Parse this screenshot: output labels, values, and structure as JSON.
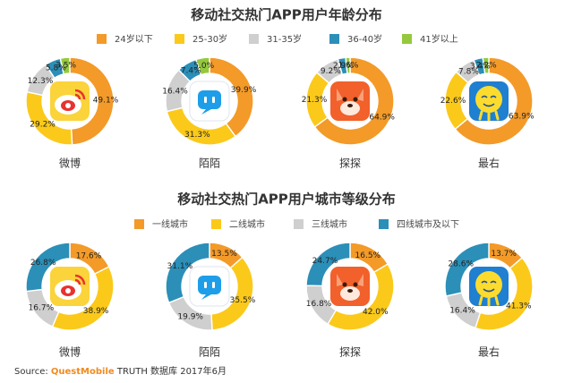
{
  "colors": {
    "s1": "#f39a28",
    "s2": "#fbc91a",
    "s3": "#cfcfcf",
    "s4": "#2b8fb8",
    "s5": "#95c93d",
    "weibo_bg": "#fbd33b",
    "weibo_eye": "#e8322f",
    "momo_bg": "#1e9ee8",
    "tantan_bg": "#f2602b",
    "zuiyou_bg": "#1f7fd0",
    "zuiyou_face": "#fbdc2e"
  },
  "chart_data": [
    {
      "type": "pie",
      "title": "移动社交热门APP用户年龄分布",
      "legend": [
        "24岁以下",
        "25-30岁",
        "31-35岁",
        "36-40岁",
        "41岁以上"
      ],
      "series": [
        {
          "name": "微博",
          "values": [
            49.1,
            29.2,
            12.3,
            5.8,
            3.5
          ],
          "labels": [
            "49.1%",
            "29.2%",
            "12.3%",
            "5.8%",
            "3.5%"
          ]
        },
        {
          "name": "陌陌",
          "values": [
            39.9,
            31.3,
            16.4,
            7.4,
            5.0
          ],
          "labels": [
            "39.9%",
            "31.3%",
            "16.4%",
            "7.4%",
            "5.0%"
          ]
        },
        {
          "name": "探探",
          "values": [
            64.9,
            21.3,
            9.2,
            2.9,
            1.6
          ],
          "labels": [
            "64.9%",
            "21.3%",
            "9.2%",
            "2.9%",
            "1.6%"
          ]
        },
        {
          "name": "最右",
          "values": [
            63.9,
            22.6,
            7.8,
            3.4,
            2.2
          ],
          "labels": [
            "63.9%",
            "22.6%",
            "7.8%",
            "3.4%",
            "2.2%"
          ]
        }
      ]
    },
    {
      "type": "pie",
      "title": "移动社交热门APP用户城市等级分布",
      "legend": [
        "一线城市",
        "二线城市",
        "三线城市",
        "四线城市及以下"
      ],
      "series": [
        {
          "name": "微博",
          "values": [
            17.6,
            38.9,
            16.7,
            26.8
          ],
          "labels": [
            "17.6%",
            "38.9%",
            "16.7%",
            "26.8%"
          ]
        },
        {
          "name": "陌陌",
          "values": [
            13.5,
            35.5,
            19.9,
            31.1
          ],
          "labels": [
            "13.5%",
            "35.5%",
            "19.9%",
            "31.1%"
          ]
        },
        {
          "name": "探探",
          "values": [
            16.5,
            42.0,
            16.8,
            24.7
          ],
          "labels": [
            "16.5%",
            "42.0%",
            "16.8%",
            "24.7%"
          ]
        },
        {
          "name": "最右",
          "values": [
            13.7,
            41.3,
            16.4,
            28.6
          ],
          "labels": [
            "13.7%",
            "41.3%",
            "16.4%",
            "28.6%"
          ]
        }
      ]
    }
  ],
  "source": {
    "prefix": "Source:",
    "brand": "QuestMobile",
    "suffix": " TRUTH 数据库 2017年6月"
  }
}
